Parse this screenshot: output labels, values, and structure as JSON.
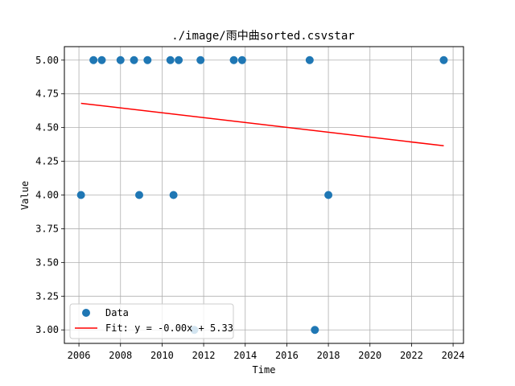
{
  "chart_data": {
    "type": "scatter",
    "title": "./image/雨中曲sorted.csvstar",
    "xlabel": "Time",
    "ylabel": "Value",
    "xlim": [
      2005.3,
      2024.5
    ],
    "ylim": [
      2.9,
      5.1
    ],
    "x_ticks": [
      "2006",
      "2008",
      "2010",
      "2012",
      "2014",
      "2016",
      "2018",
      "2020",
      "2022",
      "2024"
    ],
    "y_ticks": [
      "3.00",
      "3.25",
      "3.50",
      "3.75",
      "4.00",
      "4.25",
      "4.50",
      "4.75",
      "5.00"
    ],
    "grid": true,
    "legend_position": "lower-left",
    "series": [
      {
        "name": "Data",
        "color": "#1f77b4",
        "points": [
          {
            "x": 2006.1,
            "y": 4.0
          },
          {
            "x": 2006.7,
            "y": 5.0
          },
          {
            "x": 2007.1,
            "y": 5.0
          },
          {
            "x": 2008.0,
            "y": 5.0
          },
          {
            "x": 2008.65,
            "y": 5.0
          },
          {
            "x": 2008.9,
            "y": 4.0
          },
          {
            "x": 2009.3,
            "y": 5.0
          },
          {
            "x": 2010.4,
            "y": 5.0
          },
          {
            "x": 2010.55,
            "y": 4.0
          },
          {
            "x": 2010.8,
            "y": 5.0
          },
          {
            "x": 2011.55,
            "y": 3.0
          },
          {
            "x": 2011.85,
            "y": 5.0
          },
          {
            "x": 2013.45,
            "y": 5.0
          },
          {
            "x": 2013.85,
            "y": 5.0
          },
          {
            "x": 2017.1,
            "y": 5.0
          },
          {
            "x": 2017.35,
            "y": 3.0
          },
          {
            "x": 2018.0,
            "y": 4.0
          },
          {
            "x": 2023.55,
            "y": 5.0
          }
        ]
      }
    ],
    "fit_line": {
      "name": "Fit: y = -0.00x + 5.33",
      "color": "#ff0000",
      "x": [
        2006.1,
        2023.55
      ],
      "y": [
        4.68,
        4.365
      ]
    }
  }
}
